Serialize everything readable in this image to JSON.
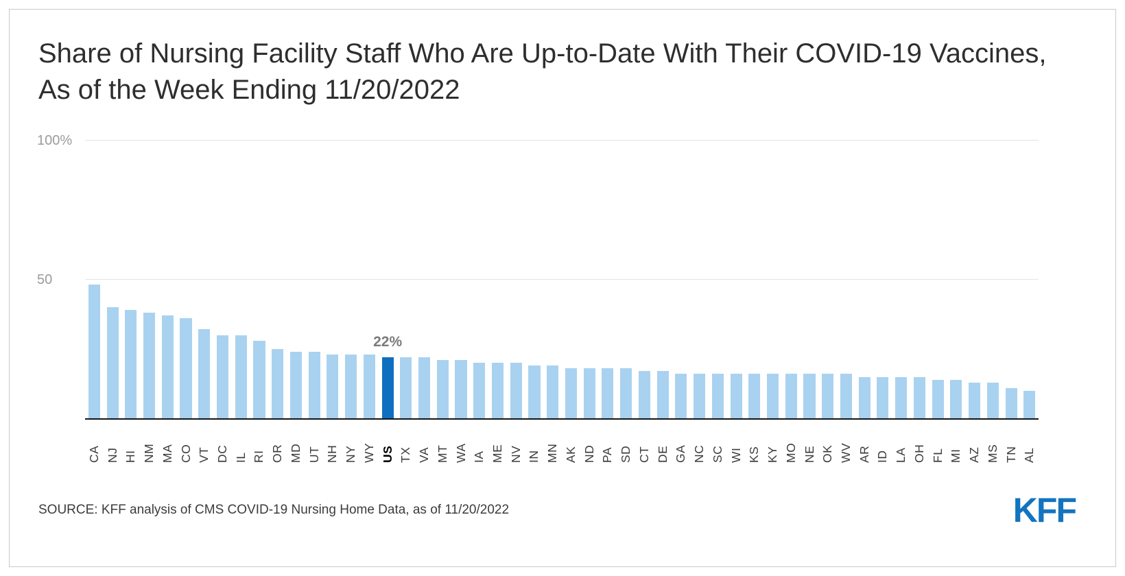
{
  "chart_data": {
    "type": "bar",
    "title": "Share of Nursing Facility Staff Who Are Up-to-Date With Their COVID-19 Vaccines, As of the Week Ending 11/20/2022",
    "categories": [
      "CA",
      "NJ",
      "HI",
      "NM",
      "MA",
      "CO",
      "VT",
      "DC",
      "IL",
      "RI",
      "OR",
      "MD",
      "UT",
      "NH",
      "NY",
      "WY",
      "US",
      "TX",
      "VA",
      "MT",
      "WA",
      "IA",
      "ME",
      "NV",
      "IN",
      "MN",
      "AK",
      "ND",
      "PA",
      "SD",
      "CT",
      "DE",
      "GA",
      "NC",
      "SC",
      "WI",
      "KS",
      "KY",
      "MO",
      "NE",
      "OK",
      "WV",
      "AR",
      "ID",
      "LA",
      "OH",
      "FL",
      "MI",
      "AZ",
      "MS",
      "TN",
      "AL"
    ],
    "values": [
      48,
      40,
      39,
      38,
      37,
      36,
      32,
      30,
      30,
      28,
      25,
      24,
      24,
      23,
      23,
      23,
      22,
      22,
      22,
      21,
      21,
      20,
      20,
      20,
      19,
      19,
      18,
      18,
      18,
      18,
      17,
      17,
      16,
      16,
      16,
      16,
      16,
      16,
      16,
      16,
      16,
      16,
      15,
      15,
      15,
      15,
      14,
      14,
      13,
      13,
      11,
      10
    ],
    "highlight_category": "US",
    "highlight_label": "22%",
    "xlabel": "",
    "ylabel": "",
    "ylim": [
      0,
      100
    ],
    "yticks": [
      {
        "label": "100%",
        "value": 100
      },
      {
        "label": "50",
        "value": 50
      }
    ],
    "grid": true,
    "legend": "none",
    "colors": {
      "bar": "#A9D2F0",
      "highlight": "#0E6FC0",
      "gridline": "#e4e4e4",
      "axis_line": "#141414",
      "logo": "#1374BF"
    }
  },
  "source": "SOURCE: KFF analysis of CMS COVID-19 Nursing Home Data, as of 11/20/2022",
  "logo": "KFF"
}
